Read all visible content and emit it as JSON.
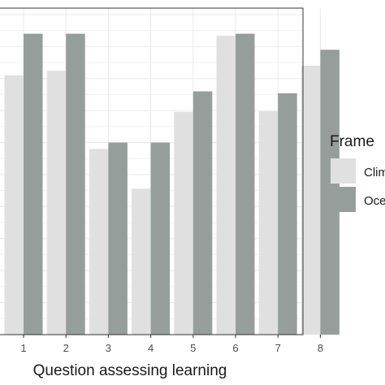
{
  "chart_data": {
    "type": "bar",
    "xlabel": "Question assessing learning",
    "categories": [
      "1",
      "2",
      "3",
      "4",
      "5",
      "6",
      "7",
      "8"
    ],
    "series": [
      {
        "name": "Climate change",
        "color": "#dfe0df",
        "values": [
          0.705,
          0.712,
          0.59,
          0.528,
          0.648,
          0.767,
          0.649,
          0.72
        ]
      },
      {
        "name": "Ocean acidification",
        "color": "#969e9b",
        "values": [
          0.77,
          0.77,
          0.6,
          0.6,
          0.68,
          0.77,
          0.677,
          0.745
        ]
      }
    ],
    "ylim": [
      0.3,
      0.81
    ],
    "grid": true,
    "legend": {
      "title": "Frame",
      "position": "right"
    }
  }
}
